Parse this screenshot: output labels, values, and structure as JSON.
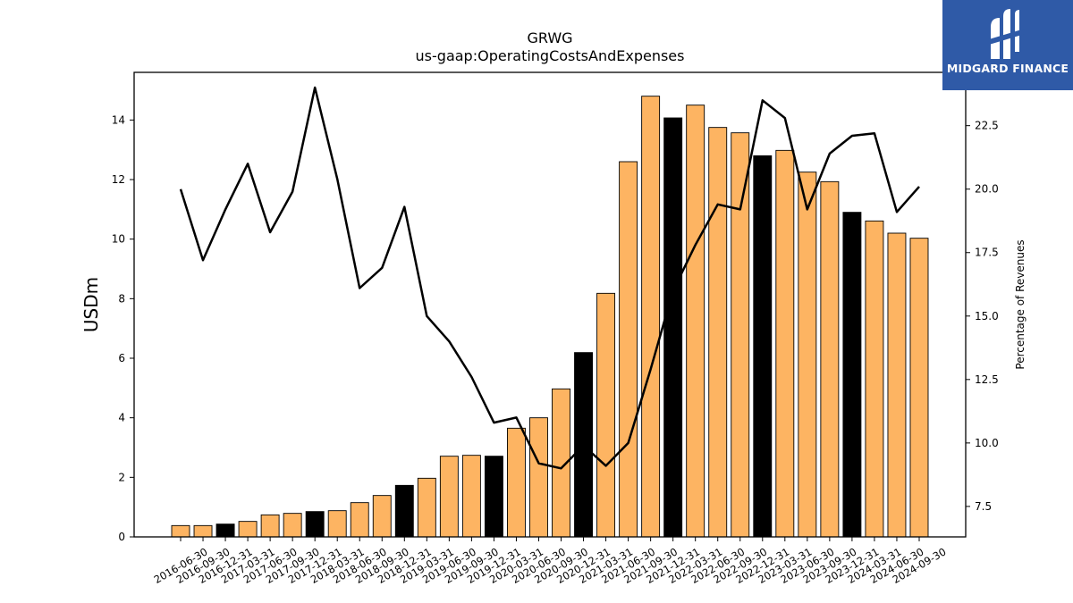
{
  "chart_data": {
    "type": "bar",
    "title": "GRWG",
    "subtitle": "us-gaap:OperatingCostsAndExpenses",
    "ylabel": "USDm",
    "y2label": "Percentage of Revenues",
    "ylim": [
      0,
      15.6
    ],
    "y2lim": [
      6.3,
      24.6
    ],
    "yticks": [
      "0",
      "2",
      "4",
      "6",
      "8",
      "10",
      "12",
      "14"
    ],
    "y2ticks": [
      "7.5",
      "10.0",
      "12.5",
      "15.0",
      "17.5",
      "20.0",
      "22.5"
    ],
    "categories": [
      "2016-06-30",
      "2016-09-30",
      "2016-12-31",
      "2017-03-31",
      "2017-06-30",
      "2017-09-30",
      "2017-12-31",
      "2018-03-31",
      "2018-06-30",
      "2018-09-30",
      "2018-12-31",
      "2019-03-31",
      "2019-06-30",
      "2019-09-30",
      "2019-12-31",
      "2020-03-31",
      "2020-06-30",
      "2020-09-30",
      "2020-12-31",
      "2021-03-31",
      "2021-06-30",
      "2021-09-30",
      "2021-12-31",
      "2022-03-31",
      "2022-06-30",
      "2022-09-30",
      "2022-12-31",
      "2023-03-31",
      "2023-06-30",
      "2023-09-30",
      "2023-12-31",
      "2024-03-31",
      "2024-06-30",
      "2024-09-30"
    ],
    "series": [
      {
        "kind": "bar",
        "values": [
          0.38,
          0.38,
          0.43,
          0.52,
          0.74,
          0.79,
          0.85,
          0.88,
          1.15,
          1.39,
          1.73,
          1.97,
          2.71,
          2.74,
          2.71,
          3.65,
          4.0,
          4.97,
          6.19,
          8.18,
          12.6,
          14.8,
          14.07,
          14.5,
          13.75,
          13.57,
          12.8,
          12.98,
          12.25,
          11.93,
          10.9,
          10.61,
          10.2,
          10.03
        ]
      },
      {
        "kind": "line",
        "axis": "right",
        "values": [
          20.0,
          17.2,
          19.2,
          21.0,
          18.3,
          19.9,
          24.0,
          20.4,
          16.1,
          16.9,
          19.3,
          15.0,
          14.0,
          12.6,
          10.8,
          11.0,
          9.2,
          9.0,
          9.9,
          9.1,
          10.0,
          12.9,
          16.0,
          17.8,
          19.4,
          19.2,
          23.5,
          22.8,
          19.2,
          21.4,
          22.1,
          22.2,
          19.1,
          20.1
        ]
      }
    ],
    "bar_colors": {
      "default": "#fdb462",
      "highlight": "#000000"
    },
    "highlight_categories": [
      "2016-12-31",
      "2017-12-31",
      "2018-12-31",
      "2019-12-31",
      "2020-12-31",
      "2021-12-31",
      "2022-12-31",
      "2023-12-31"
    ],
    "line_color": "#000000"
  },
  "logo": {
    "text": "MIDGARD FINANCE",
    "color": "#2f5aa7"
  }
}
